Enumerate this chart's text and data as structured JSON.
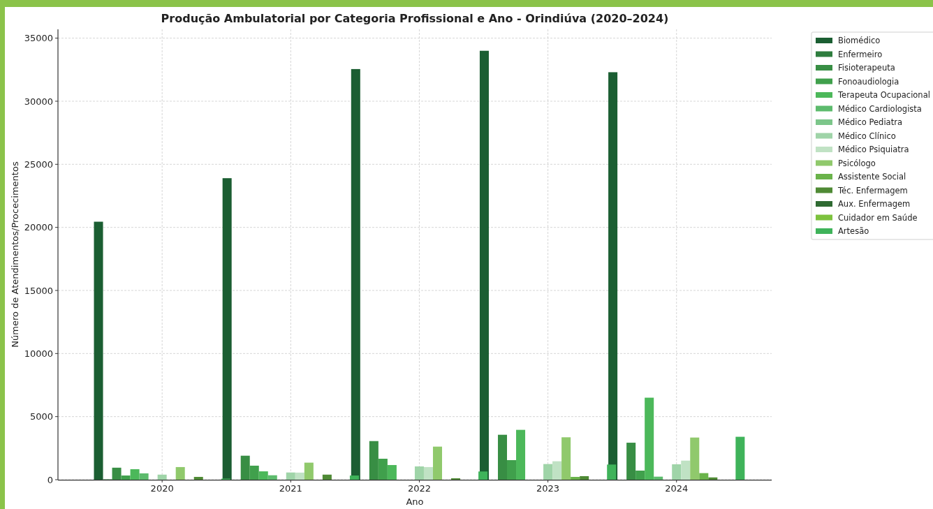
{
  "chart_data": {
    "type": "bar",
    "title": "Produção Ambulatorial por Categoria Profissional e Ano - Orindiúva (2020–2024)",
    "xlabel": "Ano",
    "ylabel": "Número de Atendimentos/Procecimentos",
    "categories": [
      "2020",
      "2021",
      "2022",
      "2023",
      "2024"
    ],
    "series": [
      {
        "name": "Biomédico",
        "color": "#1b5e32",
        "values": [
          20450,
          23900,
          32550,
          34000,
          32300
        ]
      },
      {
        "name": "Enfermeiro",
        "color": "#2e7d3e",
        "values": [
          30,
          0,
          0,
          0,
          0
        ]
      },
      {
        "name": "Fisioterapeuta",
        "color": "#388e44",
        "values": [
          950,
          1900,
          3060,
          3560,
          2930
        ]
      },
      {
        "name": "Fonoaudiologia",
        "color": "#40a04c",
        "values": [
          330,
          1110,
          1660,
          1550,
          720
        ]
      },
      {
        "name": "Terapeuta Ocupacional",
        "color": "#4cb85a",
        "values": [
          830,
          660,
          1160,
          3950,
          6500
        ]
      },
      {
        "name": "Médico Cardiologista",
        "color": "#5dbb6d",
        "values": [
          500,
          350,
          0,
          0,
          240
        ]
      },
      {
        "name": "Médico Pediatra",
        "color": "#7cc68a",
        "values": [
          0,
          0,
          0,
          0,
          0
        ]
      },
      {
        "name": "Médico Clínico",
        "color": "#9fd4a8",
        "values": [
          400,
          570,
          1050,
          1240,
          1220
        ]
      },
      {
        "name": "Médico Psiquiatra",
        "color": "#c0e2c4",
        "values": [
          0,
          560,
          1000,
          1460,
          1510
        ]
      },
      {
        "name": "Psicólogo",
        "color": "#90c96c",
        "values": [
          1000,
          1350,
          2620,
          3360,
          3340
        ]
      },
      {
        "name": "Assistente Social",
        "color": "#6ab34a",
        "values": [
          0,
          0,
          0,
          220,
          520
        ]
      },
      {
        "name": "Téc. Enfermagem",
        "color": "#4f8a35",
        "values": [
          220,
          400,
          110,
          280,
          180
        ]
      },
      {
        "name": "Aux. Enfermagem",
        "color": "#2f6a32",
        "values": [
          0,
          0,
          0,
          0,
          0
        ]
      },
      {
        "name": "Cuidador em Saúde",
        "color": "#7dc23e",
        "values": [
          0,
          0,
          0,
          0,
          0
        ]
      },
      {
        "name": "Artesão",
        "color": "#3fb35a",
        "values": [
          80,
          330,
          650,
          1200,
          3400
        ]
      }
    ],
    "ylim": [
      0,
      35700
    ],
    "yticks": [
      0,
      5000,
      10000,
      15000,
      20000,
      25000,
      30000,
      35000
    ],
    "grid": true,
    "legend": "top right"
  }
}
